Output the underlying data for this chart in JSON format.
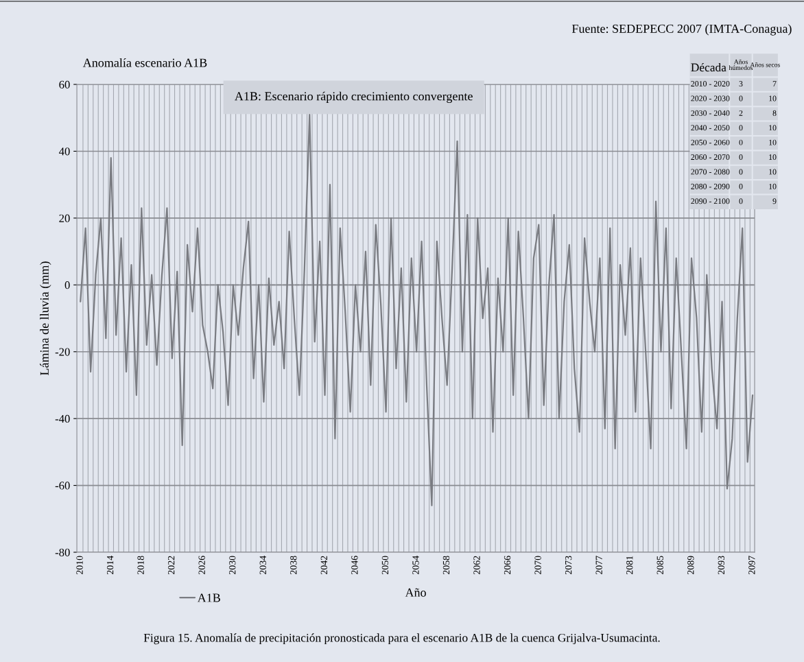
{
  "chart_data": [
    {
      "type": "line",
      "title": "Anomalía escenario A1B",
      "xlabel": "Año",
      "ylabel": "Lámina de lluvia (mm)",
      "annotations": [
        "A1B: Escenario rápido crecimiento convergente",
        "Fuente: SEDEPECC 2007 (IMTA-Conagua)",
        "Figura 15. Anomalía de precipitación pronosticada para el escenario A1B de la cuenca Grijalva-Usumacinta."
      ],
      "categories": [
        "2010",
        null,
        null,
        null,
        null,
        null,
        "2014",
        null,
        null,
        null,
        null,
        null,
        "2018",
        null,
        null,
        null,
        null,
        null,
        "2022",
        null,
        null,
        null,
        null,
        null,
        "2026",
        null,
        null,
        null,
        null,
        null,
        "2030",
        null,
        null,
        null,
        null,
        null,
        "2034",
        null,
        null,
        null,
        null,
        null,
        "2038",
        null,
        null,
        null,
        null,
        null,
        "2042",
        null,
        null,
        null,
        null,
        null,
        "2046",
        null,
        null,
        null,
        null,
        null,
        "2050",
        null,
        null,
        null,
        null,
        null,
        "2054",
        null,
        null,
        null,
        null,
        null,
        "2058",
        null,
        null,
        null,
        null,
        null,
        "2062",
        null,
        null,
        null,
        null,
        null,
        "2066",
        null,
        null,
        null,
        null,
        null,
        "2070",
        null,
        null,
        null,
        null,
        null,
        "2073",
        null,
        null,
        null,
        null,
        null,
        "2077",
        null,
        null,
        null,
        null,
        null,
        "2081",
        null,
        null,
        null,
        null,
        null,
        "2085",
        null,
        null,
        null,
        null,
        null,
        "2089",
        null,
        null,
        null,
        null,
        null,
        "2093",
        null,
        null,
        null,
        null,
        null,
        "2097"
      ],
      "series": [
        {
          "name": "A1B",
          "color": "#7a7c82",
          "values": [
            -5,
            17,
            -26,
            3,
            20,
            -16,
            38,
            -15,
            14,
            -26,
            6,
            -33,
            23,
            -18,
            3,
            -24,
            3,
            23,
            -22,
            4,
            -48,
            12,
            -8,
            17,
            -12,
            -20,
            -31,
            0,
            -14,
            -36,
            0,
            -15,
            5,
            19,
            -28,
            0,
            -35,
            2,
            -18,
            -5,
            -25,
            16,
            -10,
            -33,
            5,
            51,
            -17,
            13,
            -33,
            30,
            -46,
            17,
            -8,
            -38,
            0,
            -20,
            10,
            -30,
            18,
            -6,
            -38,
            20,
            -25,
            5,
            -35,
            8,
            -20,
            13,
            -30,
            -66,
            13,
            -10,
            -30,
            5,
            43,
            -20,
            21,
            -40,
            20,
            -10,
            5,
            -44,
            2,
            -20,
            20,
            -33,
            16,
            -10,
            -40,
            8,
            18,
            -36,
            0,
            21,
            -40,
            -5,
            12,
            -25,
            -44,
            14,
            -5,
            -20,
            8,
            -43,
            17,
            -49,
            6,
            -15,
            11,
            -38,
            8,
            -20,
            -49,
            25,
            -20,
            17,
            -37,
            8,
            -20,
            -49,
            8,
            -10,
            -44,
            3,
            -25,
            -43,
            -5,
            -61,
            -46,
            -10,
            17,
            -53,
            -33
          ]
        }
      ],
      "ylim": [
        -80,
        60
      ],
      "yticks": [
        -80,
        -60,
        -40,
        -20,
        0,
        20,
        40,
        60
      ],
      "ref_lines": [
        {
          "axis": "y",
          "value": 0,
          "line_style": "dashed",
          "color": "#8a8c92"
        }
      ],
      "grid": true,
      "legend": "bottom",
      "line_style": "solid",
      "marker": "none"
    },
    {
      "type": "other",
      "xlabel": "Década",
      "data_labels": true,
      "categories": [
        "2010 - 2020",
        "2020 - 2030",
        "2030 - 2040",
        "2040 - 2050",
        "2050 - 2060",
        "2060 - 2070",
        "2070 - 2080",
        "2080 - 2090",
        "2090 - 2100"
      ],
      "series": [
        {
          "name": "Años húmedos",
          "values": [
            3,
            0,
            2,
            0,
            0,
            0,
            0,
            0,
            0
          ]
        },
        {
          "name": "Años secos",
          "values": [
            7,
            10,
            8,
            10,
            10,
            10,
            10,
            10,
            9
          ]
        }
      ]
    }
  ]
}
